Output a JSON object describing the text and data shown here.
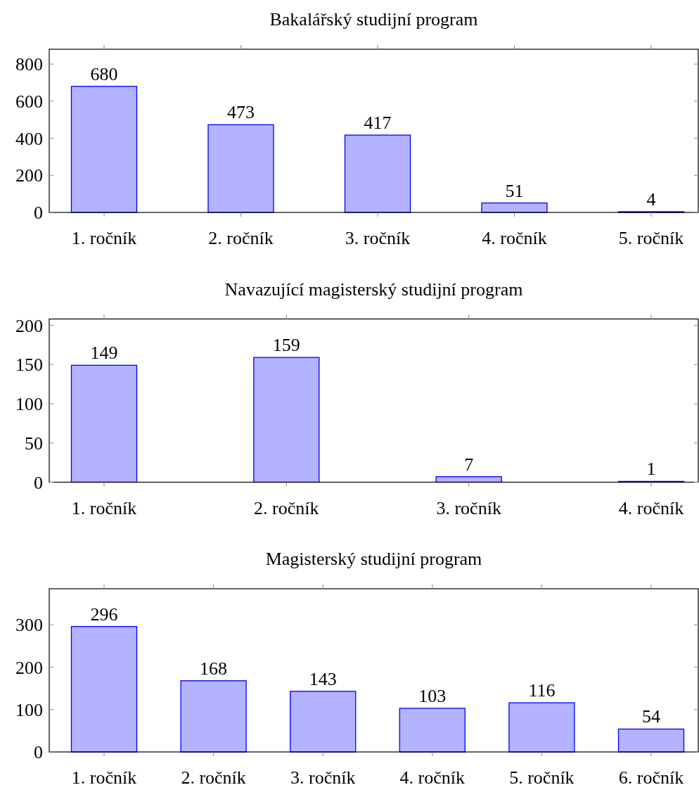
{
  "chart_data": [
    {
      "type": "bar",
      "title": "Bakalářský studijní program",
      "categories": [
        "1. ročník",
        "2. ročník",
        "3. ročník",
        "4. ročník",
        "5. ročník"
      ],
      "values": [
        680,
        473,
        417,
        51,
        4
      ],
      "color": "#b3b3ff",
      "ylim": [
        0,
        880
      ],
      "yticks": [
        0,
        200,
        400,
        600,
        800
      ],
      "data_labels": true
    },
    {
      "type": "bar",
      "title": "Navazující magisterský studijní program",
      "categories": [
        "1. ročník",
        "2. ročník",
        "3. ročník",
        "4. ročník"
      ],
      "values": [
        149,
        159,
        7,
        1
      ],
      "color": "#b3b3ff",
      "ylim": [
        0,
        208
      ],
      "yticks": [
        0,
        50,
        100,
        150,
        200
      ],
      "data_labels": true
    },
    {
      "type": "bar",
      "title": "Magisterský studijní program",
      "categories": [
        "1. ročník",
        "2. ročník",
        "3. ročník",
        "4. ročník",
        "5. ročník",
        "6. ročník"
      ],
      "values": [
        296,
        168,
        143,
        103,
        116,
        54
      ],
      "color": "#b3b3ff",
      "ylim": [
        0,
        385
      ],
      "yticks": [
        0,
        100,
        200,
        300
      ],
      "data_labels": true
    }
  ]
}
